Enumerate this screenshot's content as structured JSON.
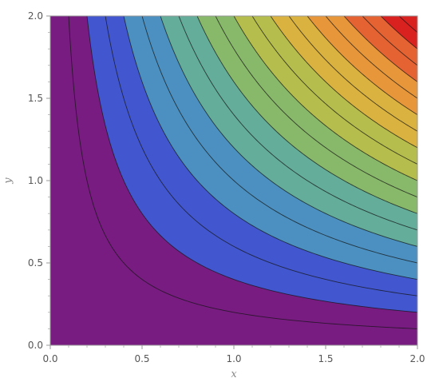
{
  "chart_data": {
    "type": "contour",
    "function": "x*y",
    "xlabel": "x",
    "ylabel": "y",
    "xlim": [
      0,
      2
    ],
    "ylim": [
      0,
      2
    ],
    "x_ticks": [
      0,
      0.5,
      1,
      1.5,
      2
    ],
    "x_tick_labels": [
      "0.0",
      "0.5",
      "1.0",
      "1.5",
      "2.0"
    ],
    "y_ticks": [
      0,
      0.5,
      1,
      1.5,
      2
    ],
    "y_tick_labels": [
      "0.0",
      "0.5",
      "1.0",
      "1.5",
      "2.0"
    ],
    "contour_levels": [
      0.2,
      0.4,
      0.6,
      0.8,
      1.0,
      1.2,
      1.4,
      1.6,
      1.8,
      2.0,
      2.2,
      2.4,
      2.6,
      2.8,
      3.0,
      3.2,
      3.4,
      3.6,
      3.8
    ],
    "band_colors": [
      "#781c81",
      "#4257cf",
      "#4b90c0",
      "#63ad9a",
      "#88b86a",
      "#b5bd4c",
      "#dab23f",
      "#e7973a",
      "#e56333",
      "#d92120"
    ],
    "grid": false
  }
}
